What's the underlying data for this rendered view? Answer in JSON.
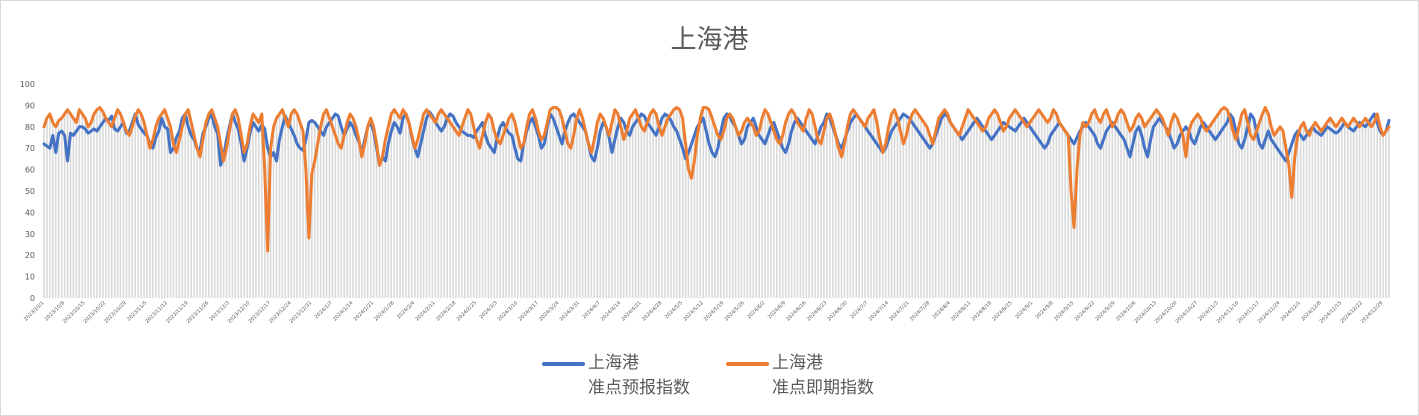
{
  "chart_data": {
    "type": "line",
    "title": "上海港",
    "xlabel": "",
    "ylabel": "",
    "ylim": [
      0,
      100
    ],
    "yticks": [
      0,
      10,
      20,
      30,
      40,
      50,
      60,
      70,
      80,
      90,
      100
    ],
    "x_start": "2023/10/1",
    "x_end": "2024/12/31",
    "x_interval": "daily",
    "xtick_labels": [
      "2023/10/1",
      "2023/10/8",
      "2023/10/15",
      "2023/10/22",
      "2023/10/29",
      "2023/11/5",
      "2023/11/12",
      "2023/11/19",
      "2023/11/26",
      "2023/12/3",
      "2023/12/10",
      "2023/12/17",
      "2023/12/24",
      "2023/12/31",
      "2024/1/7",
      "2024/1/14",
      "2024/1/21",
      "2024/1/28",
      "2024/2/4",
      "2024/2/11",
      "2024/2/18",
      "2024/2/25",
      "2024/3/3",
      "2024/3/10",
      "2024/3/17",
      "2024/3/24",
      "2024/3/31",
      "2024/4/7",
      "2024/4/14",
      "2024/4/21",
      "2024/4/28",
      "2024/5/5",
      "2024/5/12",
      "2024/5/19",
      "2024/5/26",
      "2024/6/2",
      "2024/6/9",
      "2024/6/16",
      "2024/6/23",
      "2024/6/30",
      "2024/7/7",
      "2024/7/14",
      "2024/7/21",
      "2024/7/28",
      "2024/8/4",
      "2024/8/11",
      "2024/8/18",
      "2024/8/25",
      "2024/9/1",
      "2024/9/8",
      "2024/9/15",
      "2024/9/22",
      "2024/9/29",
      "2024/10/6",
      "2024/10/13",
      "2024/10/20",
      "2024/10/27",
      "2024/11/3",
      "2024/11/10",
      "2024/11/17",
      "2024/11/24",
      "2024/12/1",
      "2024/12/8",
      "2024/12/15",
      "2024/12/22",
      "2024/12/29"
    ],
    "grid": false,
    "drop_lines": true,
    "legend_position": "bottom",
    "series": [
      {
        "name": "上海港准点预报指数",
        "name_lines": [
          "上海港",
          "准点预报指数"
        ],
        "color": "#4472C4",
        "values": [
          72,
          71,
          70,
          76,
          68,
          77,
          78,
          76,
          64,
          77,
          76,
          78,
          80,
          80,
          79,
          77,
          78,
          79,
          78,
          80,
          82,
          84,
          83,
          85,
          79,
          78,
          80,
          82,
          77,
          78,
          82,
          86,
          81,
          79,
          77,
          76,
          72,
          70,
          75,
          78,
          84,
          80,
          79,
          68,
          70,
          75,
          78,
          84,
          86,
          80,
          76,
          74,
          70,
          69,
          77,
          80,
          84,
          86,
          80,
          77,
          62,
          66,
          74,
          80,
          86,
          82,
          79,
          72,
          64,
          70,
          77,
          82,
          80,
          78,
          81,
          79,
          70,
          66,
          68,
          64,
          74,
          80,
          85,
          82,
          79,
          76,
          72,
          70,
          69,
          74,
          82,
          83,
          82,
          80,
          78,
          76,
          80,
          82,
          84,
          86,
          85,
          80,
          76,
          79,
          82,
          80,
          76,
          73,
          68,
          74,
          80,
          82,
          78,
          70,
          62,
          66,
          64,
          72,
          78,
          82,
          80,
          77,
          84,
          86,
          82,
          75,
          70,
          66,
          72,
          78,
          84,
          87,
          85,
          82,
          80,
          78,
          80,
          84,
          86,
          85,
          82,
          80,
          78,
          77,
          76,
          76,
          75,
          78,
          80,
          82,
          76,
          72,
          70,
          68,
          75,
          80,
          82,
          79,
          77,
          76,
          70,
          65,
          64,
          72,
          78,
          82,
          84,
          80,
          76,
          70,
          72,
          80,
          86,
          84,
          80,
          76,
          72,
          78,
          82,
          85,
          86,
          84,
          82,
          80,
          78,
          72,
          66,
          64,
          70,
          78,
          82,
          80,
          75,
          68,
          74,
          80,
          84,
          82,
          78,
          76,
          80,
          82,
          84,
          86,
          85,
          82,
          80,
          78,
          76,
          80,
          84,
          86,
          85,
          83,
          80,
          78,
          74,
          70,
          65,
          68,
          72,
          76,
          80,
          82,
          84,
          78,
          72,
          68,
          66,
          70,
          78,
          84,
          86,
          85,
          82,
          80,
          76,
          72,
          74,
          80,
          82,
          84,
          80,
          76,
          74,
          72,
          76,
          80,
          82,
          78,
          74,
          70,
          68,
          72,
          78,
          82,
          84,
          82,
          80,
          78,
          76,
          74,
          72,
          76,
          80,
          82,
          86,
          84,
          80,
          76,
          72,
          70,
          74,
          78,
          82,
          84,
          86,
          84,
          82,
          80,
          78,
          76,
          74,
          72,
          70,
          68,
          70,
          74,
          78,
          80,
          82,
          84,
          86,
          85,
          84,
          82,
          80,
          78,
          76,
          74,
          72,
          70,
          72,
          76,
          80,
          84,
          86,
          85,
          82,
          80,
          78,
          76,
          74,
          76,
          78,
          80,
          82,
          84,
          82,
          80,
          78,
          76,
          74,
          76,
          78,
          80,
          82,
          81,
          80,
          79,
          78,
          80,
          82,
          84,
          82,
          80,
          78,
          76,
          74,
          72,
          70,
          72,
          76,
          78,
          80,
          82,
          80,
          78,
          76,
          74,
          72,
          75,
          78,
          80,
          82,
          80,
          78,
          76,
          72,
          70,
          74,
          78,
          80,
          82,
          80,
          78,
          76,
          74,
          70,
          66,
          72,
          78,
          80,
          76,
          70,
          66,
          74,
          80,
          82,
          84,
          82,
          80,
          78,
          74,
          70,
          72,
          76,
          78,
          80,
          78,
          74,
          72,
          76,
          80,
          82,
          80,
          78,
          76,
          74,
          76,
          78,
          80,
          82,
          86,
          84,
          78,
          72,
          70,
          74,
          80,
          86,
          84,
          78,
          72,
          70,
          74,
          78,
          74,
          72,
          70,
          68,
          66,
          64,
          68,
          72,
          76,
          78,
          76,
          74,
          76,
          78,
          80,
          78,
          77,
          76,
          78,
          80,
          79,
          78,
          77,
          78,
          80,
          82,
          80,
          79,
          78,
          80,
          82,
          81,
          80,
          82,
          84,
          86,
          82,
          78,
          76,
          78,
          83
        ]
      },
      {
        "name": "上海港准点即期指数",
        "name_lines": [
          "上海港",
          "准点即期指数"
        ],
        "color": "#ED7D31",
        "values": [
          80,
          84,
          86,
          82,
          80,
          83,
          84,
          86,
          88,
          86,
          84,
          82,
          88,
          86,
          84,
          80,
          82,
          86,
          88,
          89,
          87,
          84,
          82,
          80,
          84,
          88,
          86,
          82,
          78,
          76,
          80,
          85,
          88,
          86,
          82,
          76,
          70,
          74,
          80,
          84,
          86,
          88,
          84,
          80,
          72,
          68,
          74,
          80,
          86,
          88,
          82,
          76,
          70,
          66,
          74,
          82,
          86,
          88,
          84,
          80,
          72,
          64,
          70,
          78,
          86,
          88,
          84,
          76,
          68,
          72,
          80,
          86,
          84,
          82,
          86,
          60,
          22,
          70,
          80,
          84,
          86,
          88,
          84,
          80,
          86,
          88,
          86,
          82,
          78,
          60,
          28,
          58,
          64,
          72,
          80,
          86,
          88,
          84,
          80,
          76,
          72,
          70,
          76,
          82,
          86,
          84,
          80,
          74,
          66,
          72,
          80,
          84,
          80,
          72,
          62,
          66,
          74,
          80,
          86,
          88,
          86,
          84,
          88,
          86,
          82,
          76,
          70,
          74,
          80,
          86,
          88,
          86,
          84,
          82,
          86,
          88,
          86,
          84,
          82,
          80,
          78,
          76,
          80,
          84,
          88,
          86,
          80,
          74,
          70,
          76,
          82,
          86,
          84,
          78,
          74,
          72,
          76,
          80,
          84,
          86,
          82,
          76,
          70,
          72,
          80,
          86,
          88,
          84,
          78,
          74,
          76,
          82,
          88,
          89,
          89,
          88,
          84,
          78,
          72,
          70,
          76,
          84,
          88,
          84,
          78,
          72,
          68,
          74,
          82,
          86,
          84,
          80,
          76,
          82,
          88,
          86,
          80,
          74,
          78,
          84,
          86,
          88,
          84,
          80,
          78,
          82,
          86,
          88,
          86,
          80,
          76,
          80,
          84,
          86,
          88,
          89,
          88,
          84,
          72,
          60,
          56,
          64,
          76,
          84,
          89,
          89,
          88,
          84,
          80,
          76,
          74,
          78,
          84,
          86,
          84,
          80,
          76,
          78,
          82,
          84,
          82,
          80,
          76,
          78,
          84,
          88,
          86,
          82,
          78,
          74,
          72,
          76,
          82,
          86,
          88,
          86,
          82,
          80,
          78,
          84,
          88,
          86,
          80,
          74,
          72,
          78,
          84,
          86,
          82,
          76,
          70,
          66,
          72,
          80,
          86,
          88,
          86,
          84,
          82,
          80,
          84,
          86,
          88,
          82,
          74,
          68,
          72,
          80,
          86,
          88,
          84,
          78,
          72,
          76,
          82,
          86,
          88,
          86,
          84,
          82,
          80,
          76,
          72,
          78,
          84,
          86,
          88,
          86,
          82,
          80,
          78,
          76,
          80,
          84,
          88,
          86,
          84,
          82,
          80,
          78,
          80,
          84,
          86,
          88,
          86,
          82,
          78,
          80,
          84,
          86,
          88,
          86,
          84,
          82,
          80,
          82,
          84,
          86,
          88,
          86,
          84,
          82,
          84,
          88,
          86,
          82,
          80,
          78,
          76,
          50,
          33,
          60,
          76,
          82,
          80,
          82,
          86,
          88,
          84,
          82,
          86,
          88,
          84,
          80,
          82,
          86,
          88,
          86,
          82,
          78,
          80,
          84,
          86,
          84,
          80,
          82,
          84,
          86,
          88,
          86,
          84,
          80,
          76,
          82,
          86,
          84,
          80,
          76,
          66,
          78,
          82,
          84,
          86,
          84,
          80,
          78,
          80,
          82,
          84,
          86,
          88,
          89,
          88,
          84,
          78,
          74,
          80,
          86,
          88,
          82,
          76,
          74,
          78,
          82,
          86,
          89,
          86,
          80,
          76,
          78,
          80,
          78,
          70,
          62,
          47,
          66,
          76,
          80,
          82,
          78,
          76,
          80,
          82,
          80,
          78,
          80,
          82,
          84,
          82,
          80,
          82,
          84,
          82,
          80,
          82,
          84,
          82,
          80,
          82,
          84,
          82,
          80,
          82,
          86,
          80,
          76,
          78,
          80
        ]
      }
    ]
  }
}
